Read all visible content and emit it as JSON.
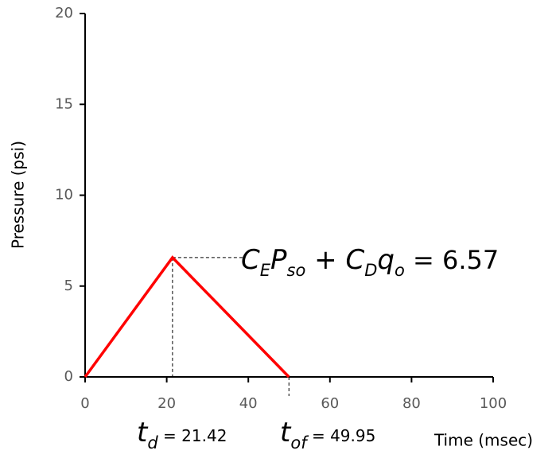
{
  "chart_data": {
    "type": "line",
    "x_label": "Time (msec)",
    "y_label": "Pressure (psi)",
    "x": [
      0,
      21.42,
      49.95
    ],
    "values": [
      0,
      6.57,
      0
    ],
    "color": "#ff0000",
    "xlim": [
      0,
      100
    ],
    "xticks": [
      0,
      20,
      40,
      60,
      80,
      100
    ],
    "ylim": [
      0,
      20
    ],
    "yticks": [
      0,
      5,
      10,
      15,
      20
    ],
    "grid": false,
    "annotations": [
      {
        "segments": [
          {
            "text": "C",
            "sub": false,
            "italic": true
          },
          {
            "text": "E",
            "sub": true,
            "italic": true
          },
          {
            "text": "P",
            "sub": false,
            "italic": true
          },
          {
            "text": "so",
            "sub": true,
            "italic": true
          },
          {
            "text": " + ",
            "sub": false,
            "italic": true
          },
          {
            "text": "C",
            "sub": false,
            "italic": true
          },
          {
            "text": "D",
            "sub": true,
            "italic": true
          },
          {
            "text": "q",
            "sub": false,
            "italic": true
          },
          {
            "text": "o",
            "sub": true,
            "italic": true
          },
          {
            "text": " = 6.57",
            "sub": false,
            "italic": false
          }
        ]
      },
      {
        "segments": [
          {
            "text": "t",
            "sub": false,
            "italic": true
          },
          {
            "text": "d",
            "sub": true,
            "italic": true
          },
          {
            "text": " = 21.42",
            "sub": false,
            "italic": false
          }
        ]
      },
      {
        "segments": [
          {
            "text": "t",
            "sub": false,
            "italic": true
          },
          {
            "text": "of",
            "sub": true,
            "italic": true
          },
          {
            "text": " = 49.95",
            "sub": false,
            "italic": false
          }
        ]
      }
    ]
  }
}
